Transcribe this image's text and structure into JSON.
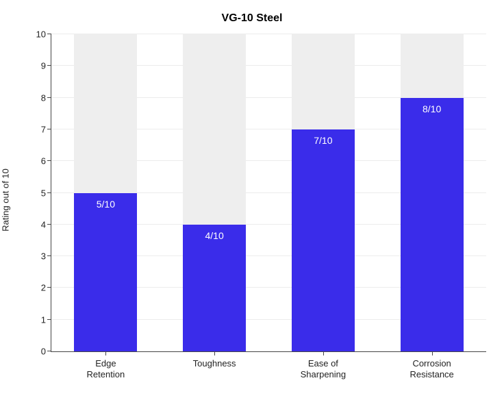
{
  "chart": {
    "type": "bar",
    "title": "VG-10 Steel",
    "title_fontsize": 16,
    "title_fontweight": 600,
    "ylabel": "Rating out of 10",
    "ylabel_fontsize": 13,
    "xtick_fontsize": 13,
    "ytick_fontsize": 13,
    "background_color": "#ffffff",
    "grid_color": "#ececec",
    "axis_color": "#444444",
    "ylim": [
      0,
      10
    ],
    "ytick_step": 1,
    "yticks": [
      0,
      1,
      2,
      3,
      4,
      5,
      6,
      7,
      8,
      9,
      10
    ],
    "bar_bg_color": "#eeeeee",
    "bar_fg_color": "#3a2cea",
    "bar_value_label_color": "#ffffff",
    "bar_value_label_fontsize": 14,
    "bar_width_ratio": 0.58,
    "categories": [
      {
        "label_line1": "Edge",
        "label_line2": "Retention",
        "value": 5,
        "value_label": "5/10"
      },
      {
        "label_line1": "Toughness",
        "label_line2": "",
        "value": 4,
        "value_label": "4/10"
      },
      {
        "label_line1": "Ease of",
        "label_line2": "Sharpening",
        "value": 7,
        "value_label": "7/10"
      },
      {
        "label_line1": "Corrosion",
        "label_line2": "Resistance",
        "value": 8,
        "value_label": "8/10"
      }
    ]
  }
}
